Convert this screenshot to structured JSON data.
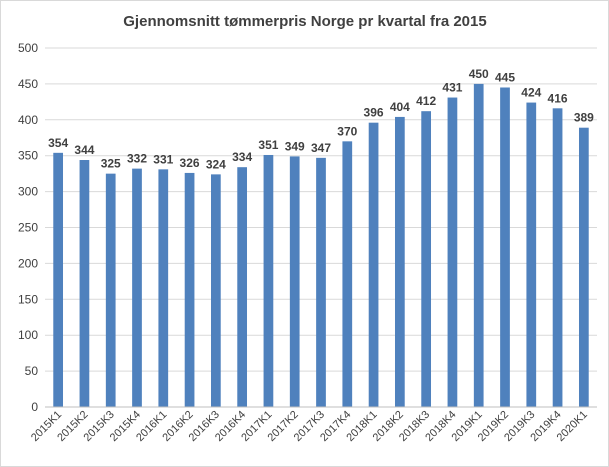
{
  "chart_data": {
    "type": "bar",
    "title": "Gjennomsnitt tømmerpris Norge pr kvartal fra 2015",
    "xlabel": "",
    "ylabel": "",
    "ylim": [
      0,
      500
    ],
    "yticks": [
      0,
      50,
      100,
      150,
      200,
      250,
      300,
      350,
      400,
      450,
      500
    ],
    "grid": true,
    "legend": "none",
    "bar_color": "#4f81bd",
    "categories": [
      "2015K1",
      "2015K2",
      "2015K3",
      "2015K4",
      "2016K1",
      "2016K2",
      "2016K3",
      "2016K4",
      "2017K1",
      "2017K2",
      "2017K3",
      "2017K4",
      "2018K1",
      "2018K2",
      "2018K3",
      "2018K4",
      "2019K1",
      "2019K2",
      "2019K3",
      "2019K4",
      "2020K1"
    ],
    "values": [
      354,
      344,
      325,
      332,
      331,
      326,
      324,
      334,
      351,
      349,
      347,
      370,
      396,
      404,
      412,
      431,
      450,
      445,
      424,
      416,
      389
    ]
  }
}
